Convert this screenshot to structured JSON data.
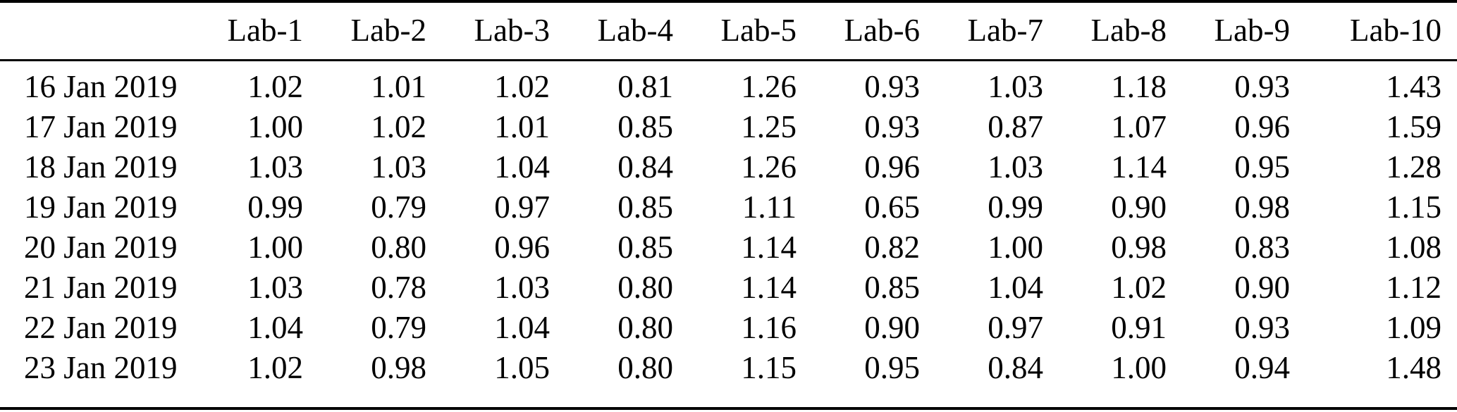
{
  "table": {
    "columns": [
      "Lab-1",
      "Lab-2",
      "Lab-3",
      "Lab-4",
      "Lab-5",
      "Lab-6",
      "Lab-7",
      "Lab-8",
      "Lab-9",
      "Lab-10"
    ],
    "rows": [
      {
        "date": "16 Jan 2019",
        "values": [
          "1.02",
          "1.01",
          "1.02",
          "0.81",
          "1.26",
          "0.93",
          "1.03",
          "1.18",
          "0.93",
          "1.43"
        ]
      },
      {
        "date": "17 Jan 2019",
        "values": [
          "1.00",
          "1.02",
          "1.01",
          "0.85",
          "1.25",
          "0.93",
          "0.87",
          "1.07",
          "0.96",
          "1.59"
        ]
      },
      {
        "date": "18 Jan 2019",
        "values": [
          "1.03",
          "1.03",
          "1.04",
          "0.84",
          "1.26",
          "0.96",
          "1.03",
          "1.14",
          "0.95",
          "1.28"
        ]
      },
      {
        "date": "19 Jan 2019",
        "values": [
          "0.99",
          "0.79",
          "0.97",
          "0.85",
          "1.11",
          "0.65",
          "0.99",
          "0.90",
          "0.98",
          "1.15"
        ]
      },
      {
        "date": "20 Jan 2019",
        "values": [
          "1.00",
          "0.80",
          "0.96",
          "0.85",
          "1.14",
          "0.82",
          "1.00",
          "0.98",
          "0.83",
          "1.08"
        ]
      },
      {
        "date": "21 Jan 2019",
        "values": [
          "1.03",
          "0.78",
          "1.03",
          "0.80",
          "1.14",
          "0.85",
          "1.04",
          "1.02",
          "0.90",
          "1.12"
        ]
      },
      {
        "date": "22 Jan 2019",
        "values": [
          "1.04",
          "0.79",
          "1.04",
          "0.80",
          "1.16",
          "0.90",
          "0.97",
          "0.91",
          "0.93",
          "1.09"
        ]
      },
      {
        "date": "23 Jan 2019",
        "values": [
          "1.02",
          "0.98",
          "1.05",
          "0.80",
          "1.15",
          "0.95",
          "0.84",
          "1.00",
          "0.94",
          "1.48"
        ]
      }
    ],
    "colors": {
      "text": "#000000",
      "background": "#ffffff",
      "rule": "#000000"
    }
  }
}
